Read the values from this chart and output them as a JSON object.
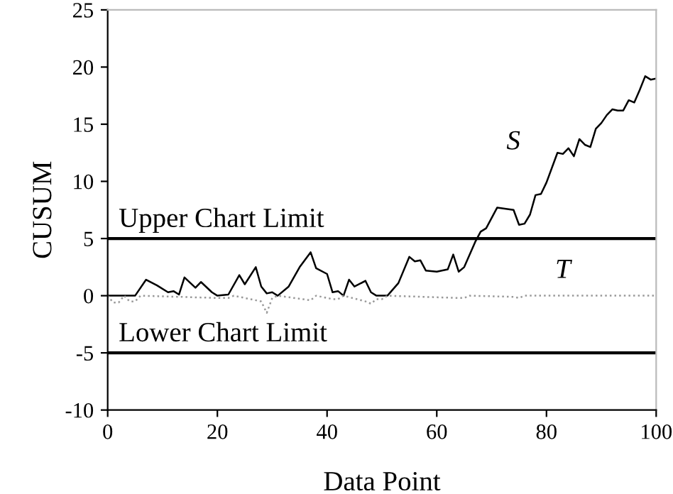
{
  "chart_data": {
    "type": "line",
    "xlabel": "Data Point",
    "ylabel": "CUSUM",
    "xlim": [
      0,
      100
    ],
    "ylim": [
      -10,
      25
    ],
    "xticks": [
      0,
      20,
      40,
      60,
      80,
      100
    ],
    "yticks": [
      -10,
      -5,
      0,
      5,
      10,
      15,
      20,
      25
    ],
    "grid": false,
    "legend": false,
    "series": [
      {
        "name": "S",
        "color": "#000000",
        "line_style": "solid",
        "x": [
          0,
          5,
          7,
          9,
          11,
          12,
          13,
          14,
          16,
          17,
          19,
          20,
          22,
          24,
          25,
          27,
          28,
          29,
          30,
          31,
          33,
          35,
          37,
          38,
          40,
          41,
          42,
          43,
          44,
          45,
          47,
          48,
          49,
          51,
          53,
          55,
          56,
          57,
          58,
          60,
          62,
          63,
          64,
          65,
          67,
          68,
          69,
          71,
          74,
          75,
          76,
          77,
          78,
          79,
          80,
          82,
          83,
          84,
          85,
          86,
          87,
          88,
          89,
          90,
          91,
          92,
          93,
          94,
          95,
          96,
          97,
          98,
          99,
          100
        ],
        "values": [
          0,
          0,
          1.4,
          0.9,
          0.3,
          0.4,
          0.1,
          1.6,
          0.7,
          1.2,
          0.3,
          0,
          0.1,
          1.8,
          1.0,
          2.5,
          0.8,
          0.2,
          0.3,
          0,
          0.8,
          2.5,
          3.8,
          2.4,
          1.9,
          0.3,
          0.4,
          0,
          1.4,
          0.8,
          1.3,
          0.3,
          0,
          0,
          1.1,
          3.4,
          3.0,
          3.1,
          2.2,
          2.1,
          2.3,
          3.6,
          2.1,
          2.5,
          4.7,
          5.6,
          5.9,
          7.7,
          7.5,
          6.2,
          6.3,
          7.1,
          8.8,
          8.9,
          9.9,
          12.5,
          12.4,
          12.9,
          12.2,
          13.7,
          13.2,
          13.0,
          14.6,
          15.1,
          15.8,
          16.3,
          16.2,
          16.2,
          17.1,
          16.9,
          18.0,
          19.2,
          18.9,
          19.0
        ]
      },
      {
        "name": "T",
        "color": "#999999",
        "line_style": "dotted",
        "x": [
          0,
          1,
          2,
          3,
          4,
          5,
          6,
          20,
          22,
          23,
          28,
          29,
          30,
          31,
          37,
          38,
          41,
          42,
          43,
          47,
          48,
          49,
          50,
          51,
          64,
          65,
          66,
          74,
          75,
          76,
          100
        ],
        "values": [
          0,
          -0.6,
          -0.6,
          0,
          -0.5,
          -0.5,
          0,
          -0.2,
          -0.2,
          0,
          -0.5,
          -1.5,
          -0.2,
          0,
          -0.4,
          0,
          -0.3,
          -0.3,
          0,
          -0.5,
          -0.7,
          -0.3,
          -0.3,
          0,
          -0.2,
          -0.2,
          0,
          -0.1,
          -0.2,
          0,
          0
        ]
      }
    ],
    "ref_lines": [
      {
        "axis": "y",
        "value": 5,
        "label": "Upper Chart Limit",
        "color": "#000000"
      },
      {
        "axis": "y",
        "value": -5,
        "label": "Lower Chart Limit",
        "color": "#000000"
      }
    ]
  }
}
